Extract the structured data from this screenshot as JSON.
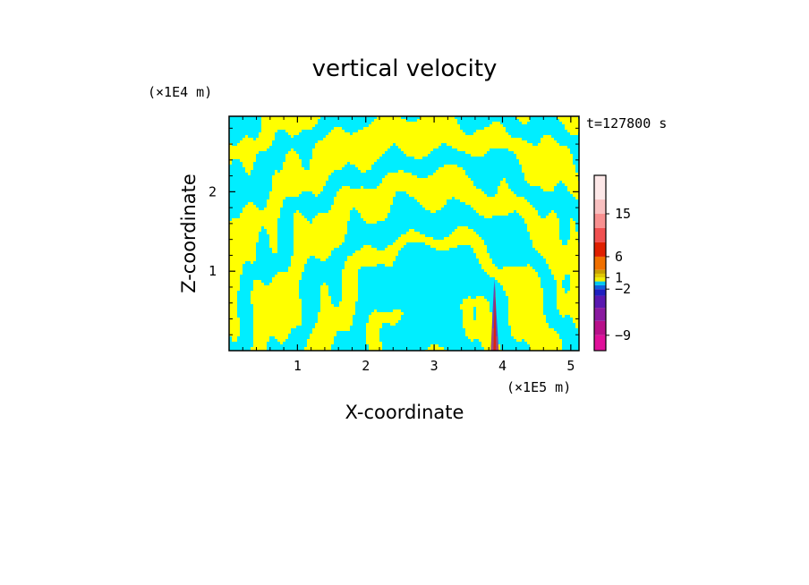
{
  "chart_data": {
    "type": "heatmap",
    "title": "vertical velocity",
    "xlabel": "X-coordinate",
    "ylabel": "Z-coordinate",
    "x_unit": "(×1E5 m)",
    "y_unit": "(×1E4 m)",
    "time_label": "t=127800 s",
    "xlim": [
      0,
      5.12
    ],
    "ylim": [
      0,
      2.95
    ],
    "x_ticks": [
      1,
      2,
      3,
      4,
      5
    ],
    "y_ticks": [
      1,
      2
    ],
    "x_tick_labels": [
      "1",
      "2",
      "3",
      "4",
      "5"
    ],
    "y_tick_labels": [
      "1",
      "2"
    ],
    "grid": false,
    "colorbar": {
      "levels_bottom_to_top": [
        -12,
        -9,
        -7,
        -5,
        -3,
        -2,
        -1,
        0,
        1,
        2,
        3,
        6,
        9,
        12,
        15,
        18,
        25
      ],
      "colors_bottom_to_top": [
        "#e0109a",
        "#b8108a",
        "#8a1aa0",
        "#5a18b0",
        "#2020c0",
        "#1060e0",
        "#00c8f0",
        "#f0f000",
        "#e0c800",
        "#c8a000",
        "#f07000",
        "#e02000",
        "#f05050",
        "#f89090",
        "#f8c0c0",
        "#fde8e8"
      ],
      "tick_labels": [
        "15",
        "6",
        "1",
        "−2",
        "−9"
      ],
      "tick_values": [
        15,
        6,
        1,
        -2,
        -9
      ]
    },
    "field_summary": {
      "dominant_positive_color": "#ffff00",
      "dominant_negative_color": "#00eeff",
      "pattern": "alternating tilted wave bands, upward-arching in center"
    }
  }
}
